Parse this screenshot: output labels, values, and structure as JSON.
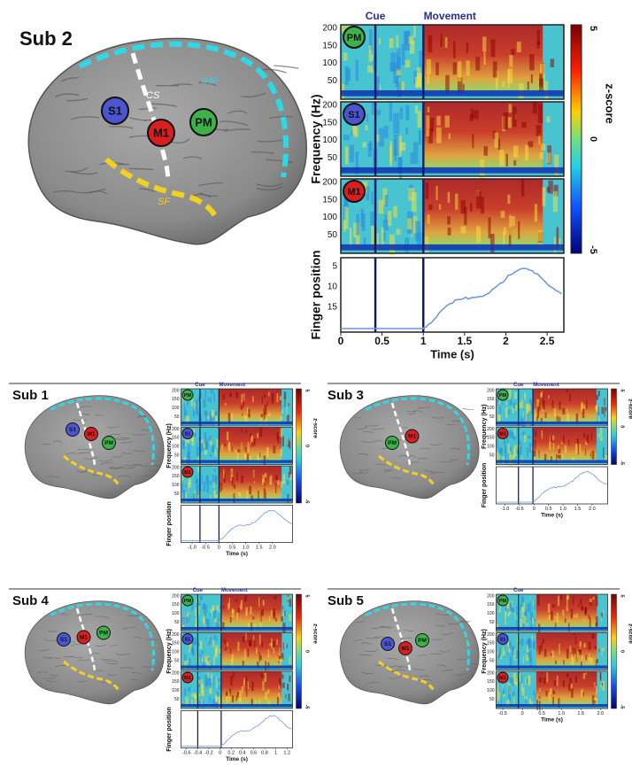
{
  "main": {
    "title": "Sub 2",
    "brain_labels": [
      {
        "text": "S1",
        "color": "#4b55d1"
      },
      {
        "text": "M1",
        "color": "#d81e1e"
      },
      {
        "text": "PM",
        "color": "#3db24a"
      }
    ],
    "sulci": [
      "CS",
      "IHF",
      "SF"
    ],
    "cue": "Cue",
    "movement": "Movement",
    "freq_label": "Frequency (Hz)",
    "freq_ticks": [
      "200",
      "150",
      "100",
      "50"
    ],
    "panels": [
      {
        "label": "PM",
        "color": "#3db24a"
      },
      {
        "label": "S1",
        "color": "#4b55d1"
      },
      {
        "label": "M1",
        "color": "#d81e1e"
      }
    ],
    "colorbar_label": "z-score",
    "colorbar_ticks": [
      "5",
      "0",
      "-5"
    ],
    "finger_label": "Finger position",
    "finger_ticks": [
      "5",
      "10",
      "15"
    ],
    "time_label": "Time (s)",
    "time_ticks": [
      "0",
      "0.5",
      "1",
      "1.5",
      "2",
      "2.5"
    ]
  },
  "subs": [
    {
      "title": "Sub 1",
      "brain_labels": [
        {
          "text": "S1",
          "color": "#4b55d1"
        },
        {
          "text": "M1",
          "color": "#d81e1e"
        },
        {
          "text": "PM",
          "color": "#3db24a"
        }
      ],
      "cue": "Cue",
      "movement": "Movement",
      "freq_label": "Frequency (Hz)",
      "freq_ticks": [
        "200",
        "150",
        "100",
        "50"
      ],
      "panels": [
        {
          "label": "PM",
          "color": "#3db24a"
        },
        {
          "label": "S1",
          "color": "#4b55d1"
        },
        {
          "label": "M1",
          "color": "#d81e1e"
        }
      ],
      "colorbar_label": "z-score",
      "colorbar_ticks": [
        "5",
        "0",
        "-5"
      ],
      "finger_label": "Finger position",
      "time_label": "Time (s)",
      "time_ticks": [
        "-1.0",
        "-0.5",
        "0",
        "0.5",
        "1.0",
        "1.5",
        "2.0"
      ]
    },
    {
      "title": "Sub 3",
      "brain_labels": [
        {
          "text": "PM",
          "color": "#3db24a"
        },
        {
          "text": "M1",
          "color": "#d81e1e"
        }
      ],
      "cue": "Cue",
      "movement": "Movement",
      "freq_label": "Frequency (Hz)",
      "freq_ticks": [
        "200",
        "150",
        "100",
        "50"
      ],
      "panels": [
        {
          "label": "PM",
          "color": "#3db24a"
        },
        {
          "label": "M1",
          "color": "#d81e1e"
        }
      ],
      "colorbar_label": "z-score",
      "colorbar_ticks": [
        "5",
        "0",
        "-5"
      ],
      "finger_label": "Finger position",
      "time_label": "Time (s)",
      "time_ticks": [
        "-1.0",
        "-0.5",
        "0",
        "0.5",
        "1.0",
        "1.5",
        "2.0"
      ]
    },
    {
      "title": "Sub 4",
      "brain_labels": [
        {
          "text": "S1",
          "color": "#4b55d1"
        },
        {
          "text": "M1",
          "color": "#d81e1e"
        },
        {
          "text": "PM",
          "color": "#3db24a"
        }
      ],
      "cue": "Cue",
      "movement": "Movement",
      "freq_label": "Frequency (Hz)",
      "freq_ticks": [
        "200",
        "150",
        "100",
        "50"
      ],
      "panels": [
        {
          "label": "PM",
          "color": "#3db24a"
        },
        {
          "label": "S1",
          "color": "#4b55d1"
        },
        {
          "label": "M1",
          "color": "#d81e1e"
        }
      ],
      "colorbar_label": "z-score",
      "colorbar_ticks": [
        "5",
        "0",
        "-5"
      ],
      "finger_label": "Finger position",
      "time_label": "Time (s)",
      "time_ticks": [
        "-0.6",
        "-0.4",
        "-0.2",
        "0",
        "0.2",
        "0.4",
        "0.6",
        "0.8",
        "1",
        "1.2"
      ]
    },
    {
      "title": "Sub 5",
      "brain_labels": [
        {
          "text": "S1",
          "color": "#4b55d1"
        },
        {
          "text": "M1",
          "color": "#d81e1e"
        },
        {
          "text": "PM",
          "color": "#3db24a"
        }
      ],
      "cue": "Cue",
      "freq_label": "Frequency (Hz)",
      "freq_ticks": [
        "200",
        "150",
        "100",
        "50"
      ],
      "panels": [
        {
          "label": "PM",
          "color": "#3db24a"
        },
        {
          "label": "S1",
          "color": "#4b55d1"
        },
        {
          "label": "M1",
          "color": "#d81e1e"
        }
      ],
      "colorbar_label": "z-score",
      "colorbar_ticks": [
        "5",
        "0",
        "-5"
      ],
      "time_label": "Time (s)",
      "time_ticks": [
        "-0.5",
        "0",
        "0.5",
        "1.0",
        "1.5",
        "2.0"
      ]
    }
  ]
}
